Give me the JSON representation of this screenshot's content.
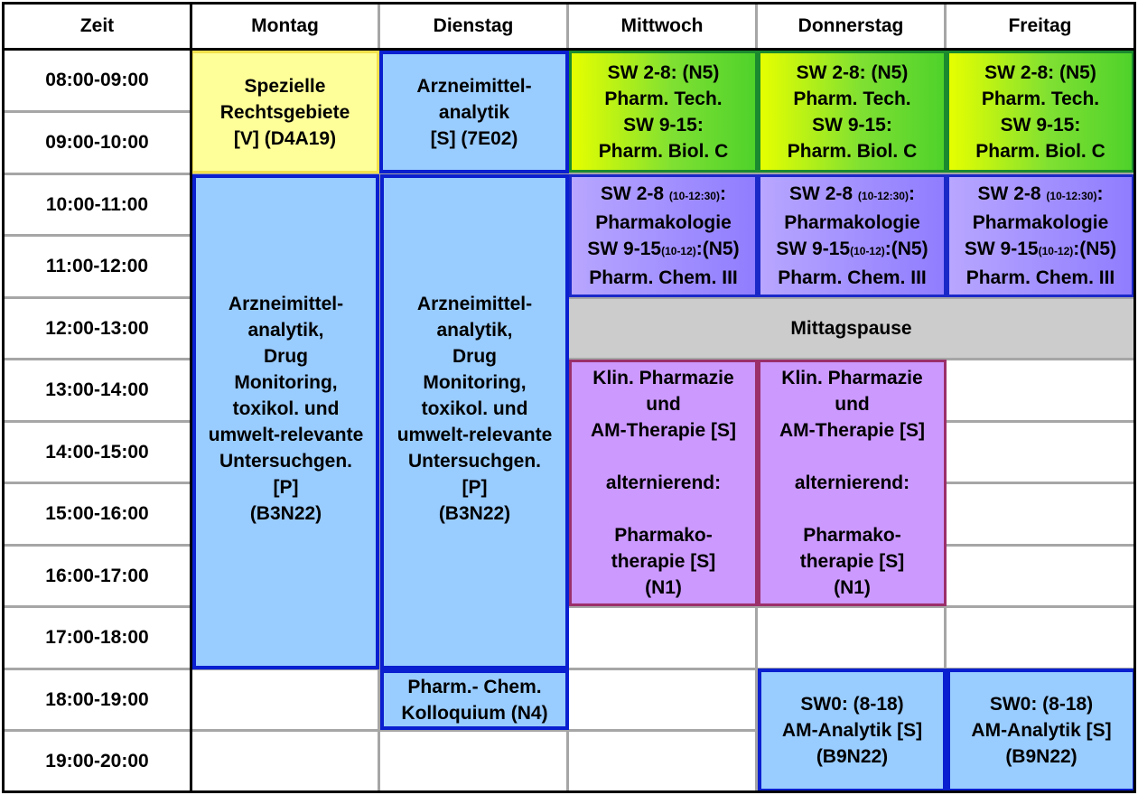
{
  "headers": {
    "zeit": "Zeit",
    "montag": "Montag",
    "dienstag": "Dienstag",
    "mittwoch": "Mittwoch",
    "donnerstag": "Donnerstag",
    "freitag": "Freitag"
  },
  "time_slots": [
    "08:00-09:00",
    "09:00-10:00",
    "10:00-11:00",
    "11:00-12:00",
    "12:00-13:00",
    "13:00-14:00",
    "14:00-15:00",
    "15:00-16:00",
    "16:00-17:00",
    "17:00-18:00",
    "18:00-19:00",
    "19:00-20:00"
  ],
  "blocks": {
    "montag_recht": [
      "Spezielle",
      "Rechtsgebiete",
      "[V] (D4A19)"
    ],
    "dienstag_analytik": [
      "Arzneimittel-",
      "analytik",
      "[S] (7E02)"
    ],
    "sw_morning": {
      "l1": "SW 2-8: (N5)",
      "l2": "Pharm. Tech.",
      "l3": "SW 9-15:",
      "l4": "Pharm. Biol. C"
    },
    "sw_late": {
      "l1a": "SW 2-8 ",
      "l1b": "(10-12:30)",
      "l1c": ":",
      "l2": "Pharmakologie",
      "l3a": "SW 9-15",
      "l3b": "(10-12)",
      "l3c": ":(N5)",
      "l4": "Pharm. Chem. III"
    },
    "praktikum": [
      "Arzneimittel-",
      "analytik,",
      "Drug",
      "Monitoring,",
      "toxikol. und",
      "umwelt-relevante",
      "Untersuchgen.",
      "[P]",
      "(B3N22)"
    ],
    "mittagspause": "Mittagspause",
    "klin": {
      "l1": "Klin. Pharmazie",
      "l2": "und",
      "l3": "AM-Therapie [S]",
      "l4": "alternierend:",
      "l5": "Pharmako-",
      "l6": "therapie [S]",
      "l7": "(N1)"
    },
    "kolloquium": [
      "Pharm.- Chem.",
      "Kolloquium (N4)"
    ],
    "sw0": [
      "SW0: (8-18)",
      "AM-Analytik [S]",
      "(B9N22)"
    ]
  }
}
